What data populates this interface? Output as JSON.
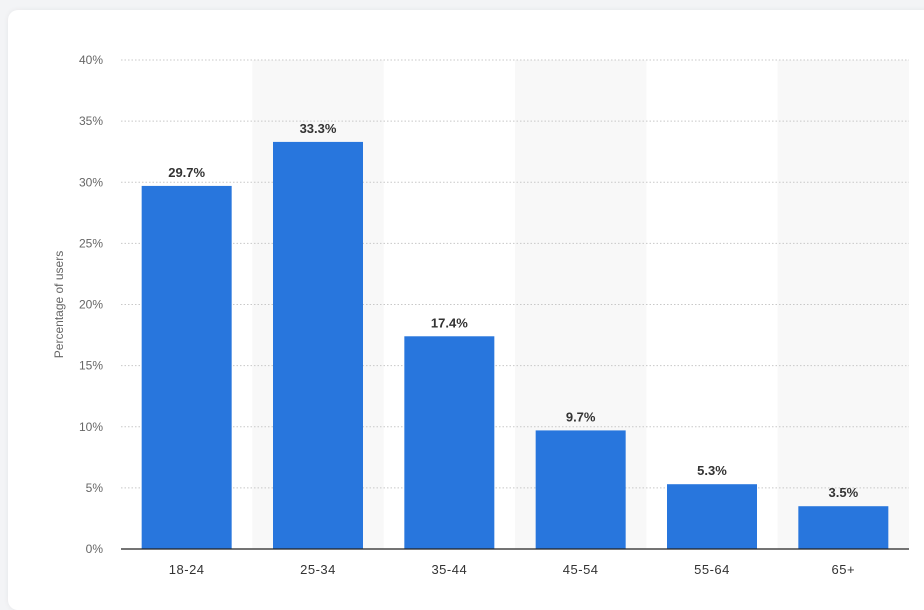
{
  "chart_data": {
    "type": "bar",
    "title": "",
    "xlabel": "",
    "ylabel": "Percentage of users",
    "categories": [
      "18-24",
      "25-34",
      "35-44",
      "45-54",
      "55-64",
      "65+"
    ],
    "values": [
      29.7,
      33.3,
      17.4,
      9.7,
      5.3,
      3.5
    ],
    "data_labels": [
      "29.7%",
      "33.3%",
      "17.4%",
      "9.7%",
      "5.3%",
      "3.5%"
    ],
    "ylim": [
      0,
      40
    ],
    "yticks": [
      0,
      5,
      10,
      15,
      20,
      25,
      30,
      35,
      40
    ],
    "ytick_labels": [
      "0%",
      "5%",
      "10%",
      "15%",
      "20%",
      "25%",
      "30%",
      "35%",
      "40%"
    ],
    "grid": true,
    "bar_color": "#2876dd",
    "alternate_band_color": "#f8f8f8"
  }
}
